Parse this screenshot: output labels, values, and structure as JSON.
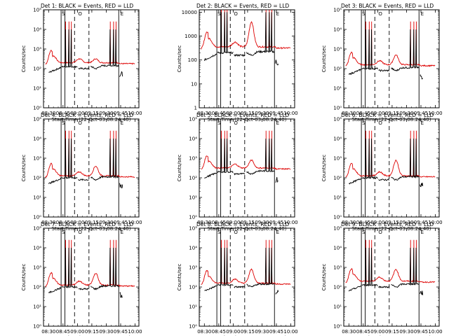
{
  "chart_data": {
    "type": "line",
    "ylabel": "Counts/sec",
    "xlabel": "Start Time (22-Oct-03 08:24:40)",
    "x_ticks": [
      "08:30",
      "08:45",
      "09:00",
      "09:15",
      "09:30",
      "09:45",
      "10:00"
    ],
    "x_tick_minutes": [
      30,
      45,
      60,
      75,
      90,
      105,
      120
    ],
    "xlim_minutes": [
      24.67,
      124
    ],
    "series_colors": {
      "events": "#000000",
      "lld": "#dd0000"
    },
    "solid_markers_minutes": [
      43,
      47,
      103
    ],
    "dashed_markers_minutes": [
      57,
      72
    ],
    "marker_letters": [
      {
        "t": 43,
        "label": "S"
      },
      {
        "t": 60,
        "label": "O"
      },
      {
        "t": 104,
        "label": "E"
      }
    ],
    "panels": [
      {
        "title": "Det 1: BLACK = Events, RED = LLD",
        "yexp": [
          0,
          5
        ],
        "yticks": [
          "10⁰",
          "10¹",
          "10²",
          "10³",
          "10⁴",
          "10⁵"
        ],
        "base_black": 2.1,
        "base_red": 2.3,
        "peak_red": 2.5,
        "markers": "full"
      },
      {
        "title": "Det 2: BLACK = Events, RED = LLD",
        "yexp": [
          0,
          4.1
        ],
        "yticks": [
          "1",
          "10",
          "100",
          "1000",
          "10000"
        ],
        "base_black": 2.3,
        "base_red": 2.55,
        "peak_red": 3.6,
        "markers": "det2"
      },
      {
        "title": "Det 3: BLACK = Events, RED = LLD",
        "yexp": [
          0,
          5
        ],
        "yticks": [
          "10⁰",
          "10¹",
          "10²",
          "10³",
          "10⁴",
          "10⁵"
        ],
        "base_black": 2.0,
        "base_red": 2.2,
        "peak_red": 2.7,
        "markers": "full"
      },
      {
        "title": "Det 4: BLACK = Events, RED = LLD",
        "yexp": [
          0,
          5
        ],
        "yticks": [
          "10⁰",
          "10¹",
          "10²",
          "10³",
          "10⁴",
          "10⁵"
        ],
        "base_black": 2.0,
        "base_red": 2.1,
        "peak_red": 2.6,
        "markers": "full"
      },
      {
        "title": "Det 5: BLACK = Events, RED = LLD",
        "yexp": [
          0,
          5
        ],
        "yticks": [
          "10⁰",
          "10¹",
          "10²",
          "10³",
          "10⁴",
          "10⁵"
        ],
        "base_black": 2.3,
        "base_red": 2.5,
        "peak_red": 2.9,
        "markers": "full"
      },
      {
        "title": "Det 6: BLACK = Events, RED = LLD",
        "yexp": [
          0,
          5
        ],
        "yticks": [
          "10⁰",
          "10¹",
          "10²",
          "10³",
          "10⁴",
          "10⁵"
        ],
        "base_black": 2.0,
        "base_red": 2.1,
        "peak_red": 2.9,
        "markers": "full"
      },
      {
        "title": "Det 7: BLACK = Events, RED = LLD",
        "yexp": [
          0,
          5
        ],
        "yticks": [
          "10⁰",
          "10¹",
          "10²",
          "10³",
          "10⁴",
          "10⁵"
        ],
        "base_black": 2.0,
        "base_red": 2.1,
        "peak_red": 2.7,
        "markers": "full"
      },
      {
        "title": "Det 8: BLACK = Events, RED = LLD",
        "yexp": [
          0,
          5
        ],
        "yticks": [
          "10⁰",
          "10¹",
          "10²",
          "10³",
          "10⁴",
          "10⁵"
        ],
        "base_black": 2.1,
        "base_red": 2.2,
        "peak_red": 2.9,
        "markers": "full"
      },
      {
        "title": "Det 9: BLACK = Events, RED = LLD",
        "yexp": [
          0,
          5
        ],
        "yticks": [
          "10⁰",
          "10¹",
          "10²",
          "10³",
          "10⁴",
          "10⁵"
        ],
        "base_black": 2.1,
        "base_red": 2.3,
        "peak_red": 2.9,
        "markers": "full"
      }
    ]
  }
}
